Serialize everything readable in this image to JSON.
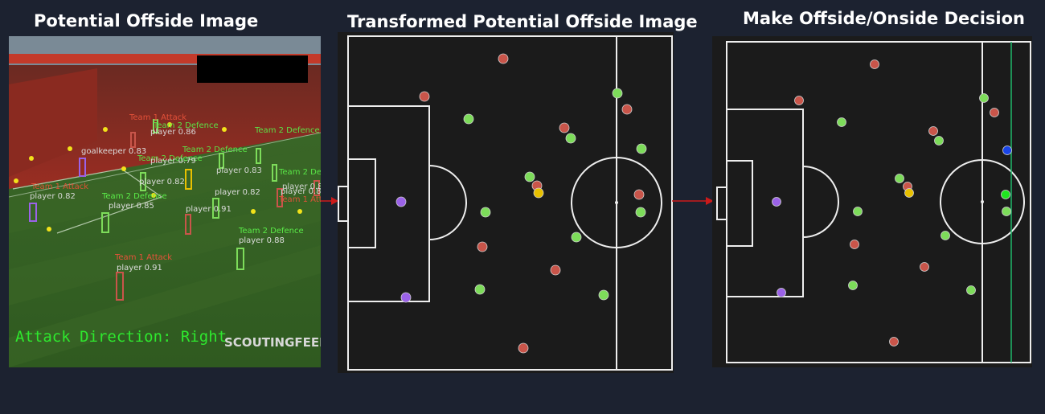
{
  "titles": {
    "panel1": "Potential Offside Image",
    "panel2": "Transformed Potential Offside Image",
    "panel3": "Make Offside/Onside Decision"
  },
  "photo": {
    "attack_direction_text": "Attack Direction: Right",
    "watermark": "SCOUTINGFEED",
    "labels": [
      {
        "t": "Team 1 Attack",
        "c": "#e8523a"
      },
      {
        "t": "player 0.91",
        "c": "#dddddd"
      },
      {
        "t": "Team 2 Defence",
        "c": "#5aeb48"
      },
      {
        "t": "player 0.88",
        "c": "#dddddd"
      },
      {
        "t": "goalkeeper 0.83",
        "c": "#dddddd"
      },
      {
        "t": "player 0.85",
        "c": "#dddddd"
      },
      {
        "t": "player 0.82",
        "c": "#dddddd"
      },
      {
        "t": "player 0.91",
        "c": "#dddddd"
      },
      {
        "t": "Team 2 Defence",
        "c": "#5aeb48"
      },
      {
        "t": "player 0.82",
        "c": "#dddddd"
      }
    ]
  },
  "colors": {
    "team1": "#c9554a",
    "team2": "#7ddc5a",
    "goalkeeper": "#9b62e8",
    "ball": "#e8c000",
    "last_defender": "#1a45e8",
    "decision_attacker": "#1fe81f",
    "offside_line": "#1fb86b",
    "arrow": "#cc1a1a"
  }
}
